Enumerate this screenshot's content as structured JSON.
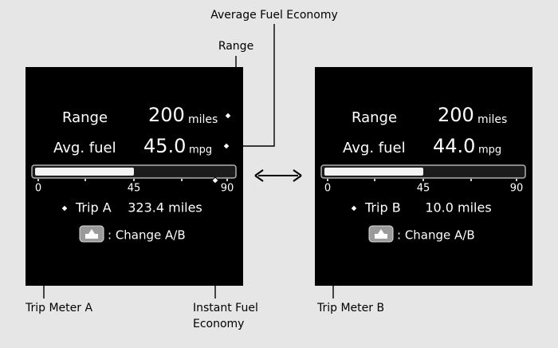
{
  "callouts": {
    "average_fuel_economy": "Average Fuel Economy",
    "range": "Range",
    "trip_meter_a": "Trip Meter A",
    "instant_fuel_economy": [
      "Instant Fuel",
      "Economy"
    ],
    "trip_meter_b": "Trip Meter B"
  },
  "panels": [
    {
      "range_label": "Range",
      "range_value": "200",
      "range_unit": "miles",
      "avg_label": "Avg. fuel",
      "avg_value": "45.0",
      "avg_unit": "mpg",
      "gauge_ticks": [
        "0",
        "45",
        "90"
      ],
      "trip_label": "Trip A",
      "trip_value": "323.4 miles",
      "change_label": ": Change A/B"
    },
    {
      "range_label": "Range",
      "range_value": "200",
      "range_unit": "miles",
      "avg_label": "Avg. fuel",
      "avg_value": "44.0",
      "avg_unit": "mpg",
      "gauge_ticks": [
        "0",
        "45",
        "90"
      ],
      "trip_label": "Trip B",
      "trip_value": "10.0 miles",
      "change_label": ": Change A/B"
    }
  ]
}
